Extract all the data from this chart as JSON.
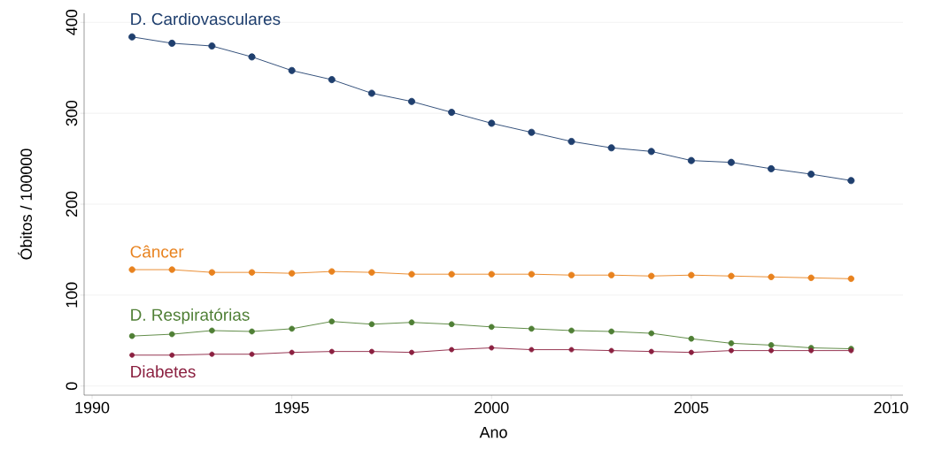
{
  "chart_data": {
    "type": "line",
    "xlabel": "Ano",
    "ylabel": "Óbitos / 100000",
    "x": [
      1991,
      1992,
      1993,
      1994,
      1995,
      1996,
      1997,
      1998,
      1999,
      2000,
      2001,
      2002,
      2003,
      2004,
      2005,
      2006,
      2007,
      2008,
      2009
    ],
    "series": [
      {
        "name": "D. Cardiovasculares",
        "color": "#1f3f6e",
        "values": [
          384,
          377,
          374,
          362,
          347,
          337,
          322,
          313,
          301,
          289,
          279,
          269,
          262,
          258,
          248,
          246,
          239,
          233,
          226
        ]
      },
      {
        "name": "Câncer",
        "color": "#e8821e",
        "values": [
          128,
          128,
          125,
          125,
          124,
          126,
          125,
          123,
          123,
          123,
          123,
          122,
          122,
          121,
          122,
          121,
          120,
          119,
          118
        ]
      },
      {
        "name": "D. Respiratórias",
        "color": "#4f7f35",
        "values": [
          55,
          57,
          61,
          60,
          63,
          71,
          68,
          70,
          68,
          65,
          63,
          61,
          60,
          58,
          52,
          47,
          45,
          42,
          41
        ]
      },
      {
        "name": "Diabetes",
        "color": "#8b2040",
        "values": [
          34,
          34,
          35,
          35,
          37,
          38,
          38,
          37,
          40,
          42,
          40,
          40,
          39,
          38,
          37,
          39,
          39,
          39,
          39
        ]
      }
    ],
    "xlim": [
      1989.8,
      2010.3
    ],
    "ylim": [
      -10,
      410
    ],
    "xticks": [
      1990,
      1995,
      2000,
      2005,
      2010
    ],
    "yticks": [
      0,
      100,
      200,
      300,
      400
    ],
    "grid": "y",
    "marker": "circle",
    "line_style": "solid"
  }
}
